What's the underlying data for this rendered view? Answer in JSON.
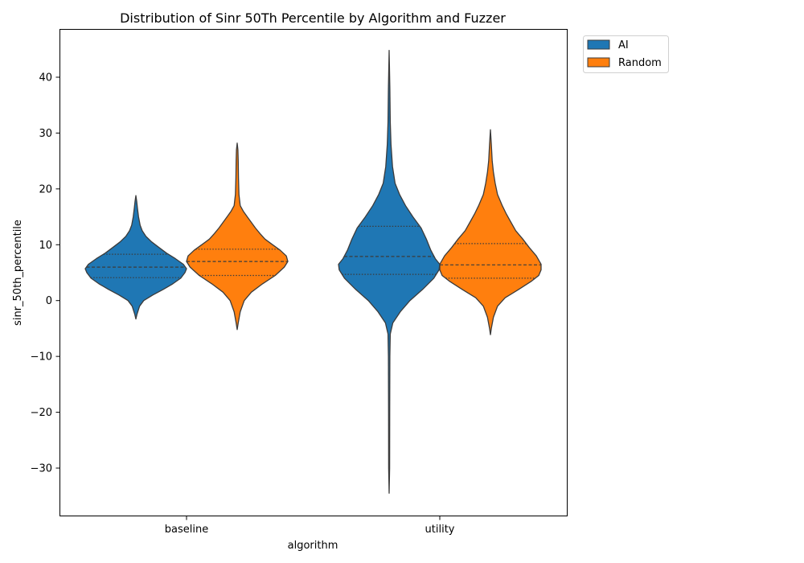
{
  "chart_data": {
    "type": "violin",
    "title": "Distribution of Sinr 50Th Percentile by Algorithm and Fuzzer",
    "xlabel": "algorithm",
    "ylabel": "sinr_50th_percentile",
    "categories": [
      "baseline",
      "utility"
    ],
    "ylim": [
      -38.5,
      48.5
    ],
    "yticks": [
      -30,
      -20,
      -10,
      0,
      10,
      20,
      30,
      40
    ],
    "ytick_labels": [
      "−30",
      "−20",
      "−10",
      "0",
      "10",
      "20",
      "30",
      "40"
    ],
    "grid": false,
    "legend_placement": "outside upper right",
    "series": [
      {
        "name": "AI",
        "color": "#1f77b4",
        "violins": [
          {
            "category": "baseline",
            "min": -3.3,
            "max": 18.8,
            "q1": 4.1,
            "median": 6.0,
            "q3": 8.3,
            "profile": [
              [
                -3.3,
                0.0
              ],
              [
                -2.5,
                0.02
              ],
              [
                -1.0,
                0.07
              ],
              [
                0.0,
                0.15
              ],
              [
                1.0,
                0.32
              ],
              [
                2.0,
                0.52
              ],
              [
                3.0,
                0.7
              ],
              [
                4.0,
                0.85
              ],
              [
                5.0,
                0.93
              ],
              [
                5.7,
                0.96
              ],
              [
                6.5,
                0.9
              ],
              [
                7.5,
                0.75
              ],
              [
                8.5,
                0.58
              ],
              [
                9.5,
                0.44
              ],
              [
                10.5,
                0.3
              ],
              [
                11.5,
                0.19
              ],
              [
                12.5,
                0.12
              ],
              [
                13.5,
                0.08
              ],
              [
                15.0,
                0.05
              ],
              [
                16.5,
                0.03
              ],
              [
                17.8,
                0.015
              ],
              [
                18.8,
                0.0
              ]
            ]
          },
          {
            "category": "utility",
            "min": -34.5,
            "max": 44.8,
            "q1": 4.7,
            "median": 7.9,
            "q3": 13.3,
            "profile": [
              [
                -34.5,
                0.0
              ],
              [
                -30.0,
                0.006
              ],
              [
                -20.0,
                0.008
              ],
              [
                -10.0,
                0.01
              ],
              [
                -6.0,
                0.015
              ],
              [
                -4.0,
                0.05
              ],
              [
                -2.0,
                0.15
              ],
              [
                0.0,
                0.28
              ],
              [
                2.0,
                0.45
              ],
              [
                4.0,
                0.6
              ],
              [
                5.5,
                0.67
              ],
              [
                6.5,
                0.68
              ],
              [
                7.5,
                0.62
              ],
              [
                9.0,
                0.56
              ],
              [
                11.0,
                0.5
              ],
              [
                13.0,
                0.43
              ],
              [
                15.0,
                0.32
              ],
              [
                17.0,
                0.22
              ],
              [
                19.0,
                0.14
              ],
              [
                21.0,
                0.08
              ],
              [
                24.0,
                0.045
              ],
              [
                28.0,
                0.025
              ],
              [
                32.0,
                0.015
              ],
              [
                38.0,
                0.01
              ],
              [
                44.8,
                0.0
              ]
            ]
          }
        ]
      },
      {
        "name": "Random",
        "color": "#ff7f0e",
        "violins": [
          {
            "category": "baseline",
            "min": -5.2,
            "max": 28.2,
            "q1": 4.5,
            "median": 7.0,
            "q3": 9.2,
            "profile": [
              [
                -5.2,
                0.0
              ],
              [
                -4.0,
                0.02
              ],
              [
                -2.0,
                0.06
              ],
              [
                0.0,
                0.14
              ],
              [
                1.5,
                0.28
              ],
              [
                3.0,
                0.5
              ],
              [
                4.5,
                0.75
              ],
              [
                6.0,
                0.93
              ],
              [
                7.0,
                1.0
              ],
              [
                8.0,
                0.97
              ],
              [
                9.0,
                0.85
              ],
              [
                10.0,
                0.7
              ],
              [
                11.0,
                0.55
              ],
              [
                12.0,
                0.45
              ],
              [
                13.0,
                0.36
              ],
              [
                14.0,
                0.28
              ],
              [
                15.0,
                0.2
              ],
              [
                16.0,
                0.12
              ],
              [
                17.0,
                0.06
              ],
              [
                19.0,
                0.035
              ],
              [
                22.0,
                0.025
              ],
              [
                25.0,
                0.02
              ],
              [
                27.0,
                0.015
              ],
              [
                28.2,
                0.0
              ]
            ]
          },
          {
            "category": "utility",
            "min": -6.1,
            "max": 30.6,
            "q1": 4.0,
            "median": 6.4,
            "q3": 10.2,
            "profile": [
              [
                -6.1,
                0.0
              ],
              [
                -5.0,
                0.015
              ],
              [
                -3.0,
                0.05
              ],
              [
                -1.0,
                0.12
              ],
              [
                0.5,
                0.25
              ],
              [
                2.0,
                0.48
              ],
              [
                3.5,
                0.7
              ],
              [
                4.5,
                0.82
              ],
              [
                5.5,
                0.86
              ],
              [
                6.5,
                0.86
              ],
              [
                8.0,
                0.78
              ],
              [
                9.5,
                0.66
              ],
              [
                11.0,
                0.55
              ],
              [
                12.5,
                0.43
              ],
              [
                14.0,
                0.35
              ],
              [
                15.5,
                0.27
              ],
              [
                17.0,
                0.2
              ],
              [
                19.0,
                0.12
              ],
              [
                21.0,
                0.08
              ],
              [
                23.0,
                0.05
              ],
              [
                25.0,
                0.03
              ],
              [
                28.0,
                0.015
              ],
              [
                30.6,
                0.0
              ]
            ]
          }
        ]
      }
    ]
  }
}
